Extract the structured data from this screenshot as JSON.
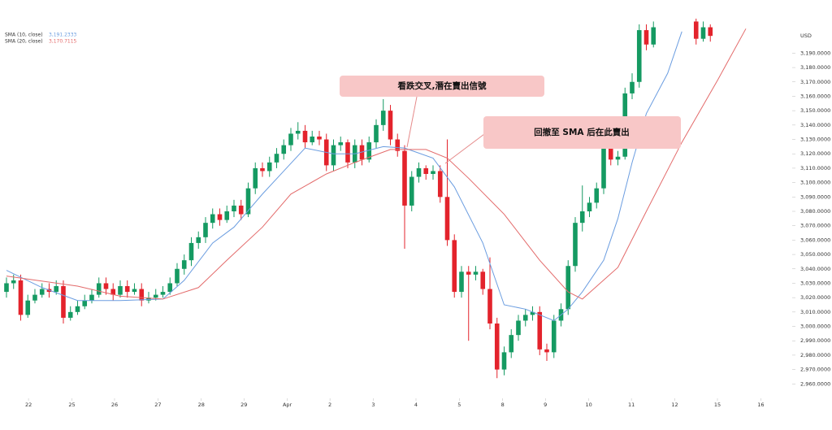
{
  "chart_data": {
    "type": "candlestick",
    "currency": "USD",
    "xlim": [
      -0.5,
      108
    ],
    "ylim": [
      2950,
      3210
    ],
    "xticks": [
      {
        "value": 3.1,
        "label": "22"
      },
      {
        "value": 9.2,
        "label": "25"
      },
      {
        "value": 15.2,
        "label": "26"
      },
      {
        "value": 21.3,
        "label": "27"
      },
      {
        "value": 27.4,
        "label": "28"
      },
      {
        "value": 33.4,
        "label": "29"
      },
      {
        "value": 39.5,
        "label": "Apr"
      },
      {
        "value": 45.5,
        "label": "2"
      },
      {
        "value": 51.6,
        "label": "3"
      },
      {
        "value": 57.6,
        "label": "4"
      },
      {
        "value": 63.7,
        "label": "5"
      },
      {
        "value": 69.8,
        "label": "8"
      },
      {
        "value": 75.8,
        "label": "9"
      },
      {
        "value": 81.9,
        "label": "10"
      },
      {
        "value": 87.9,
        "label": "11"
      },
      {
        "value": 94,
        "label": "12"
      },
      {
        "value": 100,
        "label": "15"
      },
      {
        "value": 106.1,
        "label": "16"
      }
    ],
    "yticks": [
      {
        "value": 2960,
        "label": "2,960.0000"
      },
      {
        "value": 2970,
        "label": "2,970.0000"
      },
      {
        "value": 2980,
        "label": "2,980.0000"
      },
      {
        "value": 2990,
        "label": "2,990.0000"
      },
      {
        "value": 3000,
        "label": "3,000.0000"
      },
      {
        "value": 3010,
        "label": "3,010.0000"
      },
      {
        "value": 3020,
        "label": "3,020.0000"
      },
      {
        "value": 3030,
        "label": "3,030.0000"
      },
      {
        "value": 3040,
        "label": "3,040.0000"
      },
      {
        "value": 3050,
        "label": "3,050.0000"
      },
      {
        "value": 3060,
        "label": "3,060.0000"
      },
      {
        "value": 3070,
        "label": "3,070.0000"
      },
      {
        "value": 3080,
        "label": "3,080.0000"
      },
      {
        "value": 3090,
        "label": "3,090.0000"
      },
      {
        "value": 3100,
        "label": "3,100.0000"
      },
      {
        "value": 3110,
        "label": "3,110.0000"
      },
      {
        "value": 3120,
        "label": "3,120.0000"
      },
      {
        "value": 3130,
        "label": "3,130.0000"
      },
      {
        "value": 3140,
        "label": "3,140.0000"
      },
      {
        "value": 3150,
        "label": "3,150.0000"
      },
      {
        "value": 3160,
        "label": "3,160.0000"
      },
      {
        "value": 3170,
        "label": "3,170.0000"
      },
      {
        "value": 3180,
        "label": "3,180.0000"
      },
      {
        "value": 3190,
        "label": "3,190.0000"
      }
    ],
    "up_color": "#159a62",
    "down_color": "#e3232c",
    "open": [
      3024,
      3030,
      3032,
      3008,
      3018,
      3022,
      3026,
      3024,
      3028,
      3006,
      3010,
      3014,
      3018,
      3022,
      3030,
      3026,
      3022,
      3028,
      3024,
      3026,
      3018,
      3020,
      3022,
      3024,
      3030,
      3040,
      3046,
      3058,
      3062,
      3072,
      3078,
      3074,
      3080,
      3084,
      3078,
      3096,
      3110,
      3108,
      3114,
      3120,
      3126,
      3134,
      3136,
      3128,
      3132,
      3130,
      3112,
      3126,
      3128,
      3114,
      3126,
      3116,
      3128,
      3140,
      3150,
      3130,
      3122,
      3084,
      3104,
      3110,
      3106,
      3108,
      3090,
      3060,
      3024,
      3038,
      3036,
      3038,
      3026,
      3002,
      2970,
      2982,
      2994,
      3004,
      3008,
      3010,
      2984,
      2982,
      3004,
      3012,
      3042,
      3072,
      3080,
      3086,
      3096,
      3124,
      3116,
      3118,
      3162,
      3170,
      3206,
      3196,
      null,
      null,
      null,
      null,
      null,
      3212,
      3200,
      3208,
      null,
      null,
      null,
      null,
      null
    ],
    "high": [
      3034,
      3036,
      3036,
      3022,
      3026,
      3030,
      3030,
      3032,
      3032,
      3014,
      3018,
      3022,
      3026,
      3034,
      3034,
      3030,
      3032,
      3032,
      3030,
      3030,
      3024,
      3026,
      3028,
      3034,
      3044,
      3050,
      3062,
      3066,
      3076,
      3082,
      3082,
      3084,
      3088,
      3088,
      3100,
      3114,
      3114,
      3118,
      3124,
      3130,
      3138,
      3142,
      3140,
      3136,
      3136,
      3134,
      3130,
      3132,
      3130,
      3130,
      3130,
      3132,
      3144,
      3158,
      3154,
      3134,
      3126,
      3108,
      3114,
      3112,
      3112,
      3112,
      3130,
      3064,
      3042,
      3042,
      3042,
      3040,
      3048,
      3006,
      2986,
      2998,
      3008,
      3012,
      3014,
      3014,
      2988,
      3008,
      3016,
      3046,
      3076,
      3098,
      3090,
      3100,
      3128,
      3128,
      3122,
      3166,
      3176,
      3210,
      3210,
      3212,
      null,
      null,
      null,
      null,
      null,
      3214,
      3212,
      3210,
      null,
      null,
      null,
      null,
      null
    ],
    "low": [
      3020,
      3026,
      3004,
      3006,
      3016,
      3020,
      3020,
      3022,
      3002,
      3004,
      3008,
      3012,
      3016,
      3020,
      3022,
      3018,
      3020,
      3020,
      3022,
      3014,
      3016,
      3018,
      3020,
      3022,
      3028,
      3036,
      3042,
      3054,
      3058,
      3068,
      3070,
      3072,
      3076,
      3074,
      3076,
      3092,
      3104,
      3104,
      3110,
      3116,
      3122,
      3130,
      3124,
      3126,
      3126,
      3108,
      3108,
      3122,
      3110,
      3110,
      3112,
      3114,
      3124,
      3136,
      3126,
      3118,
      3054,
      3080,
      3100,
      3102,
      3102,
      3086,
      3056,
      3020,
      3020,
      2990,
      3032,
      3022,
      2998,
      2964,
      2966,
      2978,
      2990,
      3000,
      3004,
      2980,
      2976,
      2978,
      3000,
      3008,
      3038,
      3066,
      3076,
      3082,
      3092,
      3112,
      3112,
      3116,
      3158,
      3166,
      3192,
      3194,
      null,
      null,
      null,
      null,
      null,
      3196,
      3198,
      3198,
      null,
      null,
      null,
      null,
      null
    ],
    "close": [
      3030,
      3032,
      3008,
      3018,
      3022,
      3026,
      3024,
      3028,
      3006,
      3010,
      3014,
      3018,
      3022,
      3030,
      3026,
      3022,
      3028,
      3024,
      3026,
      3018,
      3020,
      3022,
      3024,
      3030,
      3040,
      3046,
      3058,
      3062,
      3072,
      3078,
      3074,
      3080,
      3084,
      3078,
      3096,
      3110,
      3108,
      3114,
      3120,
      3126,
      3134,
      3136,
      3128,
      3132,
      3130,
      3112,
      3126,
      3128,
      3114,
      3126,
      3116,
      3128,
      3140,
      3150,
      3130,
      3122,
      3084,
      3104,
      3110,
      3106,
      3108,
      3090,
      3060,
      3024,
      3038,
      3036,
      3038,
      3026,
      3002,
      2970,
      2982,
      2994,
      3004,
      3008,
      3010,
      2984,
      2982,
      3004,
      3012,
      3042,
      3072,
      3080,
      3086,
      3096,
      3124,
      3116,
      3118,
      3162,
      3170,
      3206,
      3196,
      3208,
      null,
      null,
      null,
      null,
      null,
      3200,
      3208,
      3202,
      null,
      null,
      null,
      null,
      null
    ],
    "series": [
      {
        "name": "SMA (10, close)",
        "color": "#6b9de0",
        "last": {
          "value": 3191.2333,
          "label": "3,191.2333"
        },
        "x": [
          0,
          5,
          10,
          16,
          22,
          25,
          29,
          32,
          36,
          39,
          42,
          46,
          49,
          53,
          56,
          60,
          63,
          67,
          70,
          73,
          77,
          79,
          81,
          84,
          86,
          88,
          90,
          93,
          95
        ],
        "values": [
          3039,
          3027,
          3018,
          3018,
          3019,
          3032,
          3058,
          3069,
          3092,
          3108,
          3124,
          3120,
          3120,
          3125,
          3124,
          3117,
          3097,
          3058,
          3015,
          3012,
          3004,
          3012,
          3024,
          3046,
          3075,
          3114,
          3148,
          3176,
          3205
        ]
      },
      {
        "name": "SMA (20, close)",
        "color": "#e36a6a",
        "last": {
          "value": 3170.7115,
          "label": "3,170.7115"
        },
        "x": [
          0,
          10,
          16,
          22,
          27,
          31,
          36,
          40,
          45,
          49,
          54,
          59,
          62,
          65,
          70,
          75,
          79,
          81,
          86,
          90,
          95,
          100,
          104
        ],
        "values": [
          3035,
          3028,
          3021,
          3019,
          3027,
          3046,
          3069,
          3092,
          3106,
          3114,
          3123,
          3123,
          3117,
          3103,
          3078,
          3046,
          3024,
          3019,
          3041,
          3080,
          3128,
          3171,
          3207
        ]
      }
    ],
    "annotations": [
      {
        "text": "看跌交叉,潛在賣出信號"
      },
      {
        "text": "回撤至 SMA 后在此賣出"
      }
    ]
  }
}
